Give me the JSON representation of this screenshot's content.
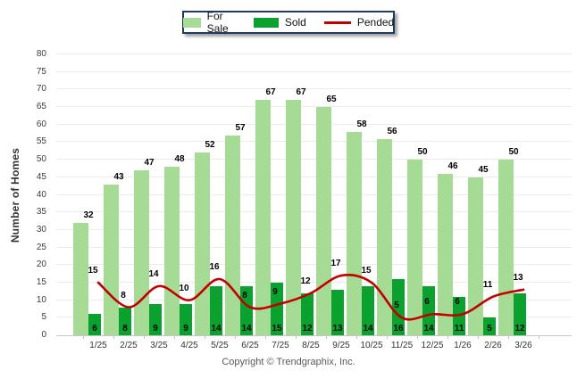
{
  "legend": {
    "items": [
      {
        "label": "For Sale"
      },
      {
        "label": "Sold"
      },
      {
        "label": "Pended"
      }
    ]
  },
  "chart_data": {
    "type": "combo",
    "categories": [
      "1/25",
      "2/25",
      "3/25",
      "4/25",
      "5/25",
      "6/25",
      "7/25",
      "8/25",
      "9/25",
      "10/25",
      "11/25",
      "12/25",
      "1/26",
      "2/26",
      "3/26"
    ],
    "series": [
      {
        "name": "For Sale",
        "type": "bar",
        "color": "#A6DB95",
        "values": [
          32,
          43,
          47,
          48,
          52,
          57,
          67,
          67,
          65,
          58,
          56,
          50,
          46,
          45,
          50
        ]
      },
      {
        "name": "Sold",
        "type": "bar",
        "color": "#0AA12E",
        "values": [
          6,
          8,
          9,
          9,
          14,
          14,
          15,
          12,
          13,
          14,
          16,
          14,
          11,
          5,
          12
        ]
      },
      {
        "name": "Pended",
        "type": "line",
        "color": "#C20000",
        "values": [
          15,
          8,
          14,
          10,
          16,
          8,
          9,
          12,
          17,
          15,
          5,
          6,
          6,
          11,
          13
        ]
      }
    ],
    "title": "",
    "xlabel": "",
    "ylabel": "Number of Homes",
    "ylim": [
      0,
      80
    ],
    "ytick_step": 5,
    "grid": true,
    "legend_position": "top-center"
  },
  "footer": {
    "copyright": "Copyright © Trendgraphix, Inc."
  }
}
